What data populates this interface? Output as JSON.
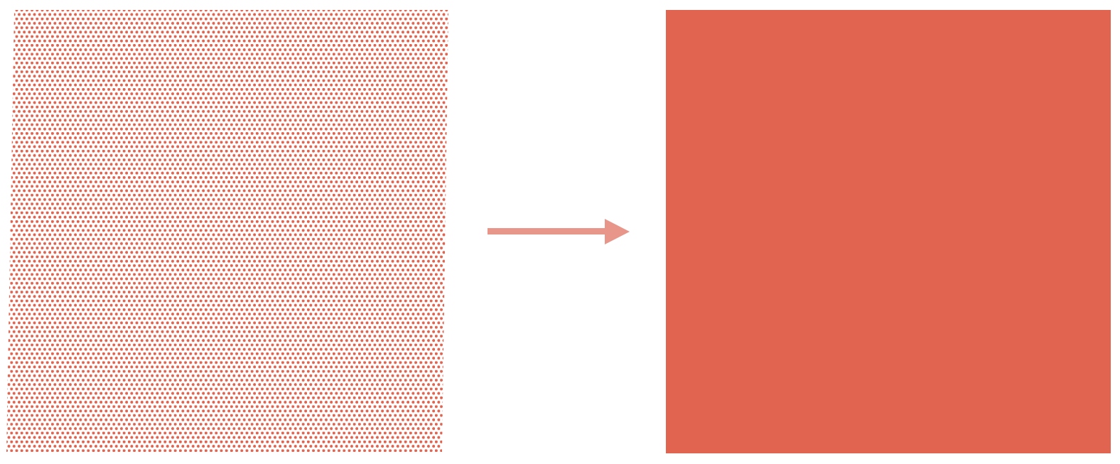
{
  "diagram": {
    "colors": {
      "dot": "#e0644f",
      "solid_square": "#e0644f",
      "arrow": "#e8958a",
      "background": "#ffffff"
    },
    "panels": [
      {
        "name": "dotted-square",
        "kind": "dot-pattern"
      },
      {
        "name": "solid-square",
        "kind": "solid-fill"
      }
    ],
    "connector": {
      "name": "transition-arrow",
      "direction": "right"
    }
  }
}
